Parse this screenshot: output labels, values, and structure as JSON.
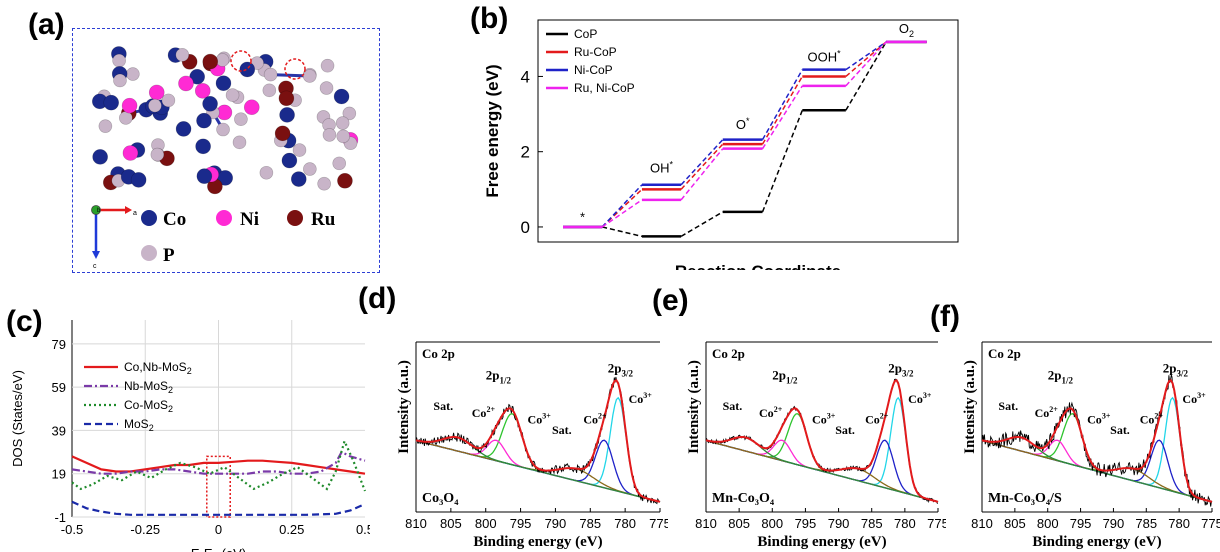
{
  "panel_labels": {
    "a": "(a)",
    "b": "(b)",
    "c": "(c)",
    "d": "(d)",
    "e": "(e)",
    "f": "(f)"
  },
  "panel_a": {
    "axes": {
      "a": "a",
      "c": "c",
      "b": "b"
    },
    "legend": [
      {
        "label": "Co",
        "color": "#1a2a8c"
      },
      {
        "label": "Ni",
        "color": "#ff2ad4"
      },
      {
        "label": "Ru",
        "color": "#7a1010"
      },
      {
        "label": "P",
        "color": "#c8b4c8"
      }
    ]
  },
  "chart_data": [
    {
      "id": "b",
      "type": "line",
      "ylabel": "Free energy (eV)",
      "xlabel": "Reaction Coordinate",
      "ylim": [
        -0.4,
        5.5
      ],
      "yticks": [
        "0",
        "2",
        "4"
      ],
      "ytick_values": [
        0,
        2,
        4
      ],
      "states": [
        "*",
        "OH*",
        "O*",
        "OOH*",
        "O2"
      ],
      "state_labels": [
        {
          "text": "*",
          "sup": ""
        },
        {
          "text": "OH",
          "sup": "*"
        },
        {
          "text": "O",
          "sup": "*"
        },
        {
          "text": "OOH",
          "sup": "*"
        },
        {
          "text": "O",
          "sub": "2"
        }
      ],
      "series": [
        {
          "name": "CoP",
          "color": "#000000",
          "values": [
            0,
            -0.25,
            0.4,
            3.1,
            4.92
          ]
        },
        {
          "name": "Ru-CoP",
          "color": "#e31a1c",
          "values": [
            0,
            1.0,
            2.2,
            4.0,
            4.92
          ]
        },
        {
          "name": "Ni-CoP",
          "color": "#1f22c8",
          "values": [
            0,
            1.12,
            2.32,
            4.18,
            4.92
          ]
        },
        {
          "name": "Ru, Ni-CoP",
          "color": "#ee22ee",
          "values": [
            0,
            0.72,
            2.08,
            3.75,
            4.92
          ]
        }
      ],
      "legend_position": "top-left"
    },
    {
      "id": "c",
      "type": "line",
      "ylabel": "DOS (States/eV)",
      "xlabel": "E-E",
      "xlabel_sub": "F",
      "xlabel_unit": " (eV)",
      "xlim": [
        -0.5,
        0.5
      ],
      "ylim": [
        -1,
        90
      ],
      "xticks": [
        "-0.5",
        "-0.25",
        "0",
        "0.25",
        "0.5"
      ],
      "xtick_values": [
        -0.5,
        -0.25,
        0,
        0.25,
        0.5
      ],
      "yticks": [
        "-1",
        "19",
        "39",
        "59",
        "79"
      ],
      "ytick_values": [
        -1,
        19,
        39,
        59,
        79
      ],
      "series": [
        {
          "name": "Co,Nb-MoS",
          "sub": "2",
          "color": "#e31a1c",
          "dash": "",
          "x": [
            -0.5,
            -0.45,
            -0.4,
            -0.35,
            -0.3,
            -0.25,
            -0.2,
            -0.15,
            -0.1,
            -0.05,
            0,
            0.05,
            0.1,
            0.15,
            0.2,
            0.25,
            0.3,
            0.35,
            0.4,
            0.45,
            0.5
          ],
          "y": [
            27,
            24,
            21,
            20,
            20,
            21,
            22,
            23,
            23,
            24,
            24,
            24.5,
            25,
            25,
            24.5,
            24,
            23,
            22,
            21,
            20,
            19
          ]
        },
        {
          "name": "Nb-MoS",
          "sub": "2",
          "color": "#7a3aa8",
          "dash": "8,3,2,3",
          "x": [
            -0.5,
            -0.45,
            -0.4,
            -0.35,
            -0.3,
            -0.25,
            -0.2,
            -0.15,
            -0.1,
            -0.05,
            0,
            0.05,
            0.1,
            0.15,
            0.2,
            0.25,
            0.3,
            0.35,
            0.4,
            0.42,
            0.45,
            0.5
          ],
          "y": [
            21,
            20,
            19,
            19,
            20,
            20,
            21,
            21,
            20,
            19,
            19,
            19,
            19,
            20,
            20,
            19,
            19,
            20,
            24,
            29,
            27,
            25
          ]
        },
        {
          "name": "Co-MoS",
          "sub": "2",
          "color": "#1e8a2a",
          "dash": "2,3",
          "x": [
            -0.5,
            -0.47,
            -0.43,
            -0.38,
            -0.33,
            -0.28,
            -0.23,
            -0.18,
            -0.13,
            -0.08,
            -0.03,
            0.02,
            0.07,
            0.12,
            0.17,
            0.22,
            0.27,
            0.32,
            0.37,
            0.4,
            0.43,
            0.46,
            0.5
          ],
          "y": [
            15,
            12,
            14,
            18,
            16,
            20,
            17,
            21,
            24,
            22,
            19,
            22,
            17,
            12,
            15,
            19,
            22,
            17,
            12,
            20,
            34,
            25,
            11
          ]
        },
        {
          "name": "MoS",
          "sub": "2",
          "color": "#1a2aa8",
          "dash": "7,4",
          "x": [
            -0.5,
            -0.45,
            -0.4,
            -0.35,
            -0.3,
            -0.2,
            -0.1,
            0,
            0.1,
            0.2,
            0.3,
            0.4,
            0.45,
            0.5
          ],
          "y": [
            6,
            3,
            1.5,
            0.5,
            0,
            0,
            0,
            0,
            0,
            0,
            0,
            0.5,
            2,
            5
          ]
        }
      ]
    },
    {
      "id": "d",
      "type": "line",
      "xlabel": "Binding energy (eV)",
      "ylabel": "Intensity (a.u.)",
      "xlim": [
        810,
        775
      ],
      "xticks": [
        "810",
        "805",
        "800",
        "795",
        "790",
        "785",
        "780",
        "775"
      ],
      "xtick_values": [
        810,
        805,
        800,
        795,
        790,
        785,
        780,
        775
      ],
      "sample": "Co₃O₄",
      "element": "Co 2p",
      "annotations": [
        "Sat.",
        "Co2+",
        "2p1/2",
        "Co3+",
        "Sat.",
        "Co2+",
        "2p3/2",
        "Co3+"
      ]
    },
    {
      "id": "e",
      "type": "line",
      "xlabel": "Binding energy (eV)",
      "ylabel": "Intensity (a.u.)",
      "xlim": [
        810,
        775
      ],
      "xticks": [
        "810",
        "805",
        "800",
        "795",
        "790",
        "785",
        "780",
        "775"
      ],
      "xtick_values": [
        810,
        805,
        800,
        795,
        790,
        785,
        780,
        775
      ],
      "sample": "Mn-Co₃O₄",
      "element": "Co 2p",
      "annotations": [
        "Sat.",
        "Co2+",
        "2p1/2",
        "Co3+",
        "Sat.",
        "Co2+",
        "2p3/2",
        "Co3+"
      ]
    },
    {
      "id": "f",
      "type": "line",
      "xlabel": "Binding energy (eV)",
      "ylabel": "Intensity (a.u.)",
      "xlim": [
        810,
        775
      ],
      "xticks": [
        "810",
        "805",
        "800",
        "795",
        "790",
        "785",
        "780",
        "775"
      ],
      "xtick_values": [
        810,
        805,
        800,
        795,
        790,
        785,
        780,
        775
      ],
      "sample": "Mn-Co₃O₄/S",
      "element": "Co 2p",
      "annotations": [
        "Sat.",
        "Co2+",
        "2p1/2",
        "Co3+",
        "Sat.",
        "Co2+",
        "2p3/2",
        "Co3+"
      ]
    }
  ]
}
